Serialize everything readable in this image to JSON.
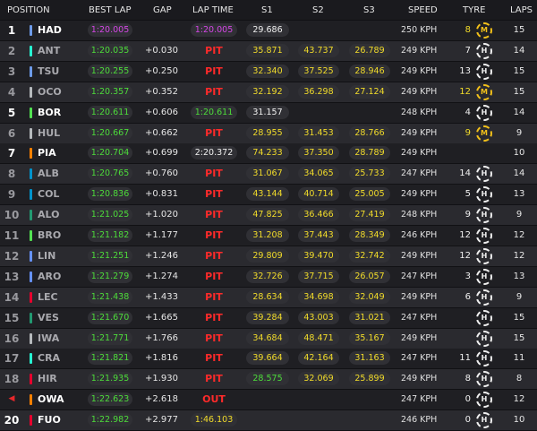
{
  "header": {
    "position": "POSITION",
    "best_lap": "BEST LAP",
    "gap": "GAP",
    "lap_time": "LAP TIME",
    "s1": "S1",
    "s2": "S2",
    "s3": "S3",
    "speed": "SPEED",
    "tyre": "TYRE",
    "laps": "LAPS"
  },
  "colors": {
    "green": "#4ddc3a",
    "purple": "#d546e6",
    "yellow": "#f2dc2a",
    "pit_red": "#ff2a2a",
    "medium_tyre": "#f2c01a",
    "hard_tyre": "#f0f0f0"
  },
  "rows": [
    {
      "pos": "1",
      "pos_style": "white",
      "team": "#6d9be8",
      "driver": "HAD",
      "driver_dim": false,
      "best": "1:20.005",
      "best_color": "purple",
      "gap": "",
      "lap_time": "1:20.005",
      "lap_color": "purple",
      "s1": "29.686",
      "s1_color": "white",
      "s2": "",
      "s2_color": "",
      "s3": "",
      "s3_color": "",
      "speed": "250 KPH",
      "tyre_age": "8",
      "tyre_age_color": "yellow",
      "tyre": "M",
      "laps": "15"
    },
    {
      "pos": "2",
      "pos_style": "dim",
      "team": "#27f4d2",
      "driver": "ANT",
      "driver_dim": true,
      "best": "1:20.035",
      "best_color": "green",
      "gap": "+0.030",
      "lap_time": "PIT",
      "lap_color": "pit",
      "s1": "35.871",
      "s1_color": "yellow",
      "s2": "43.737",
      "s2_color": "yellow",
      "s3": "26.789",
      "s3_color": "yellow",
      "speed": "249 KPH",
      "tyre_age": "7",
      "tyre_age_color": "white",
      "tyre": "H",
      "laps": "14"
    },
    {
      "pos": "3",
      "pos_style": "dim",
      "team": "#6d9be8",
      "driver": "TSU",
      "driver_dim": true,
      "best": "1:20.255",
      "best_color": "green",
      "gap": "+0.250",
      "lap_time": "PIT",
      "lap_color": "pit",
      "s1": "32.340",
      "s1_color": "yellow",
      "s2": "37.525",
      "s2_color": "yellow",
      "s3": "28.946",
      "s3_color": "yellow",
      "speed": "249 KPH",
      "tyre_age": "13",
      "tyre_age_color": "white",
      "tyre": "H",
      "laps": "15"
    },
    {
      "pos": "4",
      "pos_style": "dim",
      "team": "#b6babd",
      "driver": "OCO",
      "driver_dim": true,
      "best": "1:20.357",
      "best_color": "green",
      "gap": "+0.352",
      "lap_time": "PIT",
      "lap_color": "pit",
      "s1": "32.192",
      "s1_color": "yellow",
      "s2": "36.298",
      "s2_color": "yellow",
      "s3": "27.124",
      "s3_color": "yellow",
      "speed": "249 KPH",
      "tyre_age": "12",
      "tyre_age_color": "yellow",
      "tyre": "M",
      "laps": "15"
    },
    {
      "pos": "5",
      "pos_style": "white",
      "team": "#52e252",
      "driver": "BOR",
      "driver_dim": false,
      "best": "1:20.611",
      "best_color": "green",
      "gap": "+0.606",
      "lap_time": "1:20.611",
      "lap_color": "green",
      "s1": "31.157",
      "s1_color": "white",
      "s2": "",
      "s2_color": "",
      "s3": "",
      "s3_color": "",
      "speed": "248 KPH",
      "tyre_age": "4",
      "tyre_age_color": "white",
      "tyre": "H",
      "laps": "14"
    },
    {
      "pos": "6",
      "pos_style": "dim",
      "team": "#b6babd",
      "driver": "HUL",
      "driver_dim": true,
      "best": "1:20.667",
      "best_color": "green",
      "gap": "+0.662",
      "lap_time": "PIT",
      "lap_color": "pit",
      "s1": "28.955",
      "s1_color": "yellow",
      "s2": "31.453",
      "s2_color": "yellow",
      "s3": "28.766",
      "s3_color": "yellow",
      "speed": "249 KPH",
      "tyre_age": "9",
      "tyre_age_color": "yellow",
      "tyre": "M",
      "laps": "9"
    },
    {
      "pos": "7",
      "pos_style": "white",
      "team": "#ff8000",
      "driver": "PIA",
      "driver_dim": false,
      "best": "1:20.704",
      "best_color": "green",
      "gap": "+0.699",
      "lap_time": "2:20.372",
      "lap_color": "white",
      "s1": "74.233",
      "s1_color": "yellow",
      "s2": "37.350",
      "s2_color": "yellow",
      "s3": "28.789",
      "s3_color": "yellow",
      "speed": "249 KPH",
      "tyre_age": "",
      "tyre_age_color": "white",
      "tyre": "",
      "laps": "10"
    },
    {
      "pos": "8",
      "pos_style": "dim",
      "team": "#0093cc",
      "driver": "ALB",
      "driver_dim": true,
      "best": "1:20.765",
      "best_color": "green",
      "gap": "+0.760",
      "lap_time": "PIT",
      "lap_color": "pit",
      "s1": "31.067",
      "s1_color": "yellow",
      "s2": "34.065",
      "s2_color": "yellow",
      "s3": "25.733",
      "s3_color": "yellow",
      "speed": "247 KPH",
      "tyre_age": "14",
      "tyre_age_color": "white",
      "tyre": "H",
      "laps": "14"
    },
    {
      "pos": "9",
      "pos_style": "dim",
      "team": "#0093cc",
      "driver": "COL",
      "driver_dim": true,
      "best": "1:20.836",
      "best_color": "green",
      "gap": "+0.831",
      "lap_time": "PIT",
      "lap_color": "pit",
      "s1": "43.144",
      "s1_color": "yellow",
      "s2": "40.714",
      "s2_color": "yellow",
      "s3": "25.005",
      "s3_color": "yellow",
      "speed": "249 KPH",
      "tyre_age": "5",
      "tyre_age_color": "white",
      "tyre": "H",
      "laps": "13"
    },
    {
      "pos": "10",
      "pos_style": "dim",
      "team": "#229971",
      "driver": "ALO",
      "driver_dim": true,
      "best": "1:21.025",
      "best_color": "green",
      "gap": "+1.020",
      "lap_time": "PIT",
      "lap_color": "pit",
      "s1": "47.825",
      "s1_color": "yellow",
      "s2": "36.466",
      "s2_color": "yellow",
      "s3": "27.419",
      "s3_color": "yellow",
      "speed": "248 KPH",
      "tyre_age": "9",
      "tyre_age_color": "white",
      "tyre": "H",
      "laps": "9"
    },
    {
      "pos": "11",
      "pos_style": "dim",
      "team": "#52e252",
      "driver": "BRO",
      "driver_dim": true,
      "best": "1:21.182",
      "best_color": "green",
      "gap": "+1.177",
      "lap_time": "PIT",
      "lap_color": "pit",
      "s1": "31.208",
      "s1_color": "yellow",
      "s2": "37.443",
      "s2_color": "yellow",
      "s3": "28.349",
      "s3_color": "yellow",
      "speed": "246 KPH",
      "tyre_age": "12",
      "tyre_age_color": "white",
      "tyre": "H",
      "laps": "12"
    },
    {
      "pos": "12",
      "pos_style": "dim",
      "team": "#6692ff",
      "driver": "LIN",
      "driver_dim": true,
      "best": "1:21.251",
      "best_color": "green",
      "gap": "+1.246",
      "lap_time": "PIT",
      "lap_color": "pit",
      "s1": "29.809",
      "s1_color": "yellow",
      "s2": "39.470",
      "s2_color": "yellow",
      "s3": "32.742",
      "s3_color": "yellow",
      "speed": "249 KPH",
      "tyre_age": "12",
      "tyre_age_color": "white",
      "tyre": "H",
      "laps": "12"
    },
    {
      "pos": "13",
      "pos_style": "dim",
      "team": "#6692ff",
      "driver": "ARO",
      "driver_dim": true,
      "best": "1:21.279",
      "best_color": "green",
      "gap": "+1.274",
      "lap_time": "PIT",
      "lap_color": "pit",
      "s1": "32.726",
      "s1_color": "yellow",
      "s2": "37.715",
      "s2_color": "yellow",
      "s3": "26.057",
      "s3_color": "yellow",
      "speed": "247 KPH",
      "tyre_age": "3",
      "tyre_age_color": "white",
      "tyre": "H",
      "laps": "13"
    },
    {
      "pos": "14",
      "pos_style": "dim",
      "team": "#e8002d",
      "driver": "LEC",
      "driver_dim": true,
      "best": "1:21.438",
      "best_color": "green",
      "gap": "+1.433",
      "lap_time": "PIT",
      "lap_color": "pit",
      "s1": "28.634",
      "s1_color": "yellow",
      "s2": "34.698",
      "s2_color": "yellow",
      "s3": "32.049",
      "s3_color": "yellow",
      "speed": "249 KPH",
      "tyre_age": "6",
      "tyre_age_color": "white",
      "tyre": "H",
      "laps": "9"
    },
    {
      "pos": "15",
      "pos_style": "dim",
      "team": "#229971",
      "driver": "VES",
      "driver_dim": true,
      "best": "1:21.670",
      "best_color": "green",
      "gap": "+1.665",
      "lap_time": "PIT",
      "lap_color": "pit",
      "s1": "39.284",
      "s1_color": "yellow",
      "s2": "43.003",
      "s2_color": "yellow",
      "s3": "31.021",
      "s3_color": "yellow",
      "speed": "247 KPH",
      "tyre_age": "",
      "tyre_age_color": "white",
      "tyre": "H",
      "laps": "15"
    },
    {
      "pos": "16",
      "pos_style": "dim",
      "team": "#b6babd",
      "driver": "IWA",
      "driver_dim": true,
      "best": "1:21.771",
      "best_color": "green",
      "gap": "+1.766",
      "lap_time": "PIT",
      "lap_color": "pit",
      "s1": "34.684",
      "s1_color": "yellow",
      "s2": "48.471",
      "s2_color": "yellow",
      "s3": "35.167",
      "s3_color": "yellow",
      "speed": "249 KPH",
      "tyre_age": "",
      "tyre_age_color": "white",
      "tyre": "H",
      "laps": "15"
    },
    {
      "pos": "17",
      "pos_style": "dim",
      "team": "#27f4d2",
      "driver": "CRA",
      "driver_dim": true,
      "best": "1:21.821",
      "best_color": "green",
      "gap": "+1.816",
      "lap_time": "PIT",
      "lap_color": "pit",
      "s1": "39.664",
      "s1_color": "yellow",
      "s2": "42.164",
      "s2_color": "yellow",
      "s3": "31.163",
      "s3_color": "yellow",
      "speed": "247 KPH",
      "tyre_age": "11",
      "tyre_age_color": "white",
      "tyre": "H",
      "laps": "11"
    },
    {
      "pos": "18",
      "pos_style": "dim",
      "team": "#e8002d",
      "driver": "HIR",
      "driver_dim": true,
      "best": "1:21.935",
      "best_color": "green",
      "gap": "+1.930",
      "lap_time": "PIT",
      "lap_color": "pit",
      "s1": "28.575",
      "s1_color": "green",
      "s2": "32.069",
      "s2_color": "yellow",
      "s3": "25.899",
      "s3_color": "yellow",
      "speed": "249 KPH",
      "tyre_age": "8",
      "tyre_age_color": "white",
      "tyre": "H",
      "laps": "8"
    },
    {
      "pos": "◀",
      "pos_style": "arrow",
      "team": "#ff8000",
      "driver": "OWA",
      "driver_dim": false,
      "best": "1:22.623",
      "best_color": "green",
      "gap": "+2.618",
      "lap_time": "OUT",
      "lap_color": "pit",
      "s1": "",
      "s1_color": "",
      "s2": "",
      "s2_color": "",
      "s3": "",
      "s3_color": "",
      "speed": "247 KPH",
      "tyre_age": "0",
      "tyre_age_color": "white",
      "tyre": "H",
      "laps": "12"
    },
    {
      "pos": "20",
      "pos_style": "white",
      "team": "#e8002d",
      "driver": "FUO",
      "driver_dim": false,
      "best": "1:22.982",
      "best_color": "green",
      "gap": "+2.977",
      "lap_time": "1:46.103",
      "lap_color": "yellow",
      "s1": "",
      "s1_color": "",
      "s2": "",
      "s2_color": "",
      "s3": "",
      "s3_color": "",
      "speed": "246 KPH",
      "tyre_age": "0",
      "tyre_age_color": "white",
      "tyre": "H",
      "laps": "10"
    }
  ]
}
